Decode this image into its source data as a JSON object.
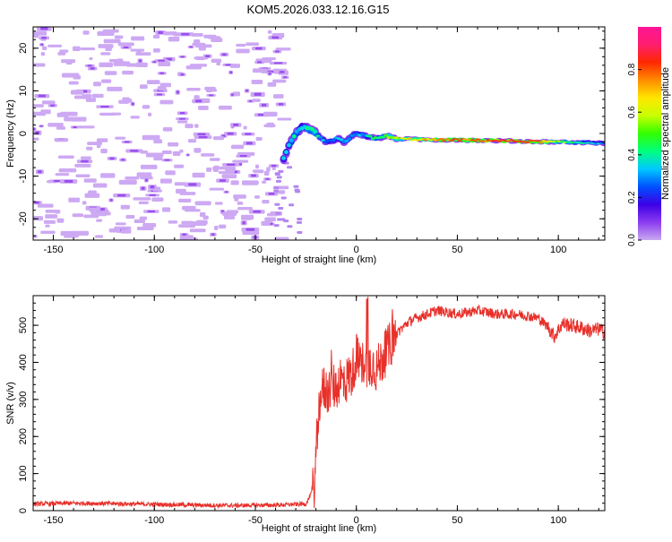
{
  "title": "KOM5.2026.033.12.16.G15",
  "chart_data": [
    {
      "type": "heatmap",
      "title": "KOM5.2026.033.12.16.G15",
      "xlabel": "Height of straight line (km)",
      "ylabel": "Frequency (Hz)",
      "xlim": [
        -160,
        123
      ],
      "ylim": [
        -25,
        25
      ],
      "x_ticks": [
        -150,
        -100,
        -50,
        0,
        50,
        100
      ],
      "y_ticks": [
        -20,
        -10,
        0,
        10,
        20
      ],
      "colorbar": {
        "label": "Normalized spectral amplitude",
        "range": [
          0,
          1
        ],
        "ticks": [
          0.0,
          0.2,
          0.4,
          0.6,
          0.8
        ],
        "tick_labels": [
          "0.0",
          "0.2",
          "0.4",
          "0.6",
          "0.8"
        ],
        "colormap": [
          "#c8a8f0",
          "#8c3cf0",
          "#3c00e6",
          "#0050ff",
          "#00c8ff",
          "#00ff80",
          "#32ff00",
          "#c8ff00",
          "#ffe600",
          "#ff8c00",
          "#ff2800",
          "#ff1e6e",
          "#ff1496"
        ]
      },
      "signal_track": {
        "x": [
          -36,
          -33,
          -30,
          -27,
          -24,
          -21,
          -18,
          -15,
          -12,
          -9,
          -6,
          -3,
          0,
          5,
          10,
          15,
          20,
          30,
          40,
          50,
          60,
          70,
          80,
          90,
          100,
          110,
          123
        ],
        "freq": [
          -6,
          -2.5,
          0,
          1.5,
          1.2,
          0.6,
          -1.0,
          -2.0,
          -1.8,
          -1.0,
          -2.2,
          -0.8,
          0.0,
          -0.6,
          -1.2,
          -0.6,
          -1.2,
          -1.4,
          -1.5,
          -1.5,
          -1.6,
          -1.7,
          -1.8,
          -1.9,
          -2.0,
          -2.1,
          -2.3
        ],
        "amplitude": [
          0.3,
          0.35,
          0.35,
          0.3,
          0.4,
          0.45,
          0.35,
          0.3,
          0.3,
          0.3,
          0.35,
          0.35,
          0.3,
          0.35,
          0.4,
          0.5,
          0.6,
          0.65,
          0.72,
          0.8,
          0.75,
          0.85,
          0.82,
          0.78,
          0.55,
          0.4,
          0.3
        ]
      },
      "noise_region_x": [
        -160,
        -35
      ]
    },
    {
      "type": "line",
      "xlabel": "Height of straight line (km)",
      "ylabel": "SNR (v/v)",
      "xlim": [
        -160,
        123
      ],
      "ylim": [
        0,
        580
      ],
      "x_ticks": [
        -150,
        -100,
        -50,
        0,
        50,
        100
      ],
      "y_ticks": [
        0,
        100,
        200,
        300,
        400,
        500
      ],
      "color": "#e8302a",
      "series": [
        {
          "name": "SNR",
          "x": [
            -160,
            -140,
            -120,
            -100,
            -80,
            -60,
            -40,
            -25,
            -21,
            -20,
            -19,
            -18,
            -16,
            -14,
            -12,
            -10,
            -8,
            -6,
            -4,
            -2,
            0,
            2,
            4,
            6,
            8,
            10,
            14,
            18,
            22,
            26,
            30,
            35,
            40,
            50,
            60,
            70,
            80,
            90,
            95,
            98,
            102,
            106,
            110,
            116,
            120,
            123
          ],
          "y": [
            18,
            20,
            19,
            17,
            15,
            14,
            15,
            18,
            60,
            140,
            230,
            310,
            330,
            320,
            340,
            330,
            360,
            340,
            360,
            370,
            420,
            380,
            410,
            390,
            400,
            380,
            420,
            460,
            490,
            510,
            520,
            530,
            540,
            530,
            540,
            530,
            530,
            520,
            495,
            470,
            505,
            500,
            495,
            485,
            490,
            480
          ]
        }
      ]
    }
  ]
}
